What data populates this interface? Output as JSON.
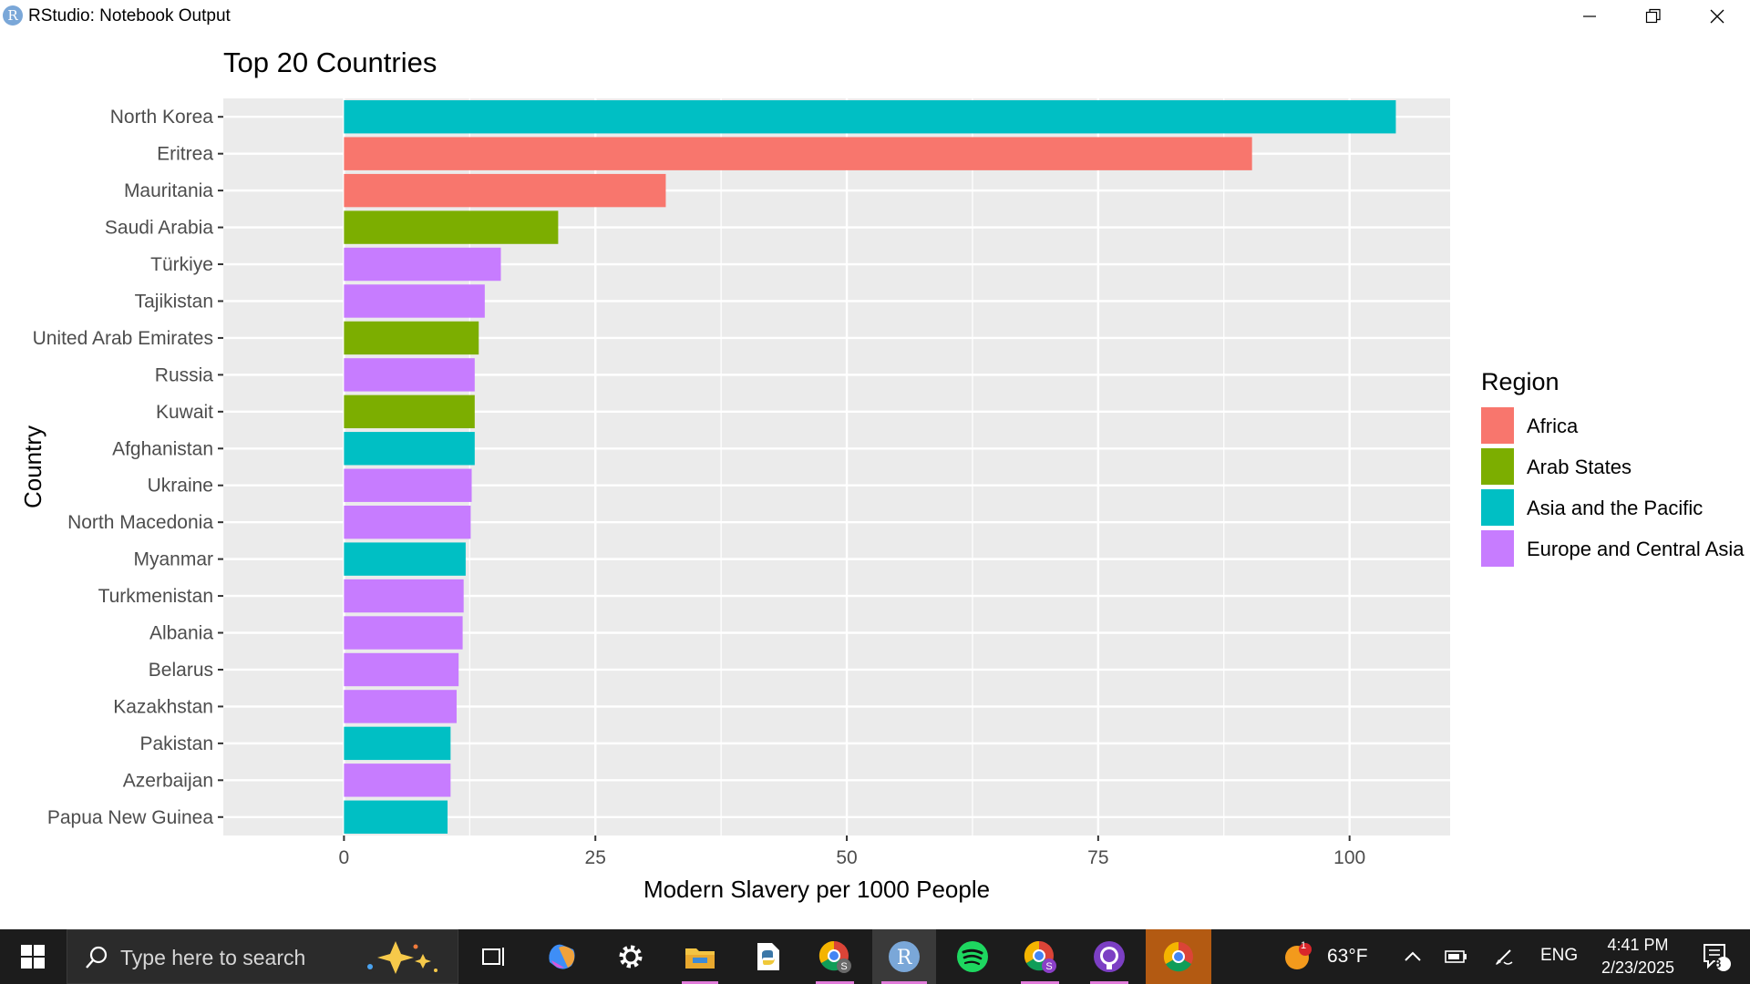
{
  "window": {
    "title": "RStudio: Notebook Output",
    "app_icon": "R"
  },
  "colors": {
    "panel_bg": "#ebebeb",
    "grid": "#ffffff",
    "Africa": "#f8766d",
    "Arab States": "#7cae00",
    "Asia and the Pacific": "#00bfc4",
    "Europe and Central Asia": "#c77cff"
  },
  "chart_data": {
    "type": "bar",
    "orientation": "horizontal",
    "title": "Top 20 Countries",
    "xlabel": "Modern Slavery per 1000 People",
    "ylabel": "Country",
    "xlim": [
      -12,
      110
    ],
    "xticks": [
      0,
      25,
      50,
      75,
      100
    ],
    "grid": true,
    "legend": {
      "title": "Region",
      "position": "right",
      "entries": [
        "Africa",
        "Arab States",
        "Asia and the Pacific",
        "Europe and Central Asia"
      ]
    },
    "categories": [
      "North Korea",
      "Eritrea",
      "Mauritania",
      "Saudi Arabia",
      "Türkiye",
      "Tajikistan",
      "United Arab Emirates",
      "Russia",
      "Kuwait",
      "Afghanistan",
      "Ukraine",
      "North Macedonia",
      "Myanmar",
      "Turkmenistan",
      "Albania",
      "Belarus",
      "Kazakhstan",
      "Pakistan",
      "Azerbaijan",
      "Papua New Guinea"
    ],
    "values": [
      104.6,
      90.3,
      32.0,
      21.3,
      15.6,
      14.0,
      13.4,
      13.0,
      13.0,
      13.0,
      12.7,
      12.6,
      12.1,
      11.9,
      11.8,
      11.4,
      11.2,
      10.6,
      10.6,
      10.3
    ],
    "regions": [
      "Asia and the Pacific",
      "Africa",
      "Africa",
      "Arab States",
      "Europe and Central Asia",
      "Europe and Central Asia",
      "Arab States",
      "Europe and Central Asia",
      "Arab States",
      "Asia and the Pacific",
      "Europe and Central Asia",
      "Europe and Central Asia",
      "Asia and the Pacific",
      "Europe and Central Asia",
      "Europe and Central Asia",
      "Europe and Central Asia",
      "Europe and Central Asia",
      "Asia and the Pacific",
      "Europe and Central Asia",
      "Asia and the Pacific"
    ]
  },
  "taskbar": {
    "search_placeholder": "Type here to search",
    "weather": "63°F",
    "weather_badge": "1",
    "language": "ENG",
    "time": "4:41 PM",
    "date": "2/23/2025",
    "notifications": "8"
  }
}
